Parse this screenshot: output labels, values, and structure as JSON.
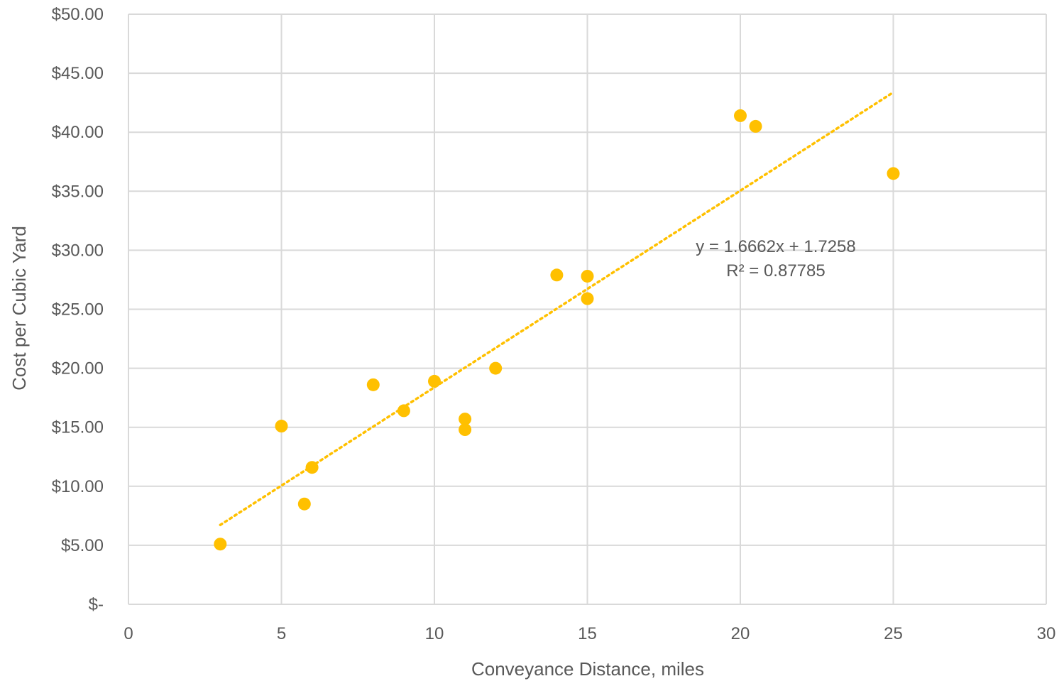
{
  "chart_data": {
    "type": "scatter",
    "title": "",
    "xlabel": "Conveyance Distance, miles",
    "ylabel": "Cost per Cubic Yard",
    "xlim": [
      0,
      30
    ],
    "ylim": [
      0,
      50
    ],
    "x_ticks": [
      0,
      5,
      10,
      15,
      20,
      25,
      30
    ],
    "x_tick_labels": [
      "0",
      "5",
      "10",
      "15",
      "20",
      "25",
      "30"
    ],
    "y_ticks": [
      0,
      5,
      10,
      15,
      20,
      25,
      30,
      35,
      40,
      45,
      50
    ],
    "y_tick_labels": [
      "$-",
      "$5.00",
      "$10.00",
      "$15.00",
      "$20.00",
      "$25.00",
      "$30.00",
      "$35.00",
      "$40.00",
      "$45.00",
      "$50.00"
    ],
    "grid": true,
    "legend": "none",
    "series": [
      {
        "color": "#FFC000",
        "points": [
          {
            "x": 3,
            "y": 5.1
          },
          {
            "x": 5,
            "y": 15.1
          },
          {
            "x": 5.75,
            "y": 8.5
          },
          {
            "x": 6,
            "y": 11.6
          },
          {
            "x": 8,
            "y": 18.6
          },
          {
            "x": 9,
            "y": 16.4
          },
          {
            "x": 10,
            "y": 18.9
          },
          {
            "x": 11,
            "y": 15.7
          },
          {
            "x": 11,
            "y": 14.8
          },
          {
            "x": 12,
            "y": 20.0
          },
          {
            "x": 14,
            "y": 27.9
          },
          {
            "x": 15,
            "y": 27.8
          },
          {
            "x": 15,
            "y": 25.9
          },
          {
            "x": 20,
            "y": 41.4
          },
          {
            "x": 20.5,
            "y": 40.5
          },
          {
            "x": 25,
            "y": 36.5
          }
        ]
      }
    ],
    "trendline": {
      "type": "linear",
      "slope": 1.6662,
      "intercept": 1.7258,
      "x_range": [
        3,
        25
      ],
      "style": "dotted",
      "color": "#FFC000",
      "equation_label": "y = 1.6662x + 1.7258",
      "r2_label": "R² = 0.87785"
    }
  }
}
